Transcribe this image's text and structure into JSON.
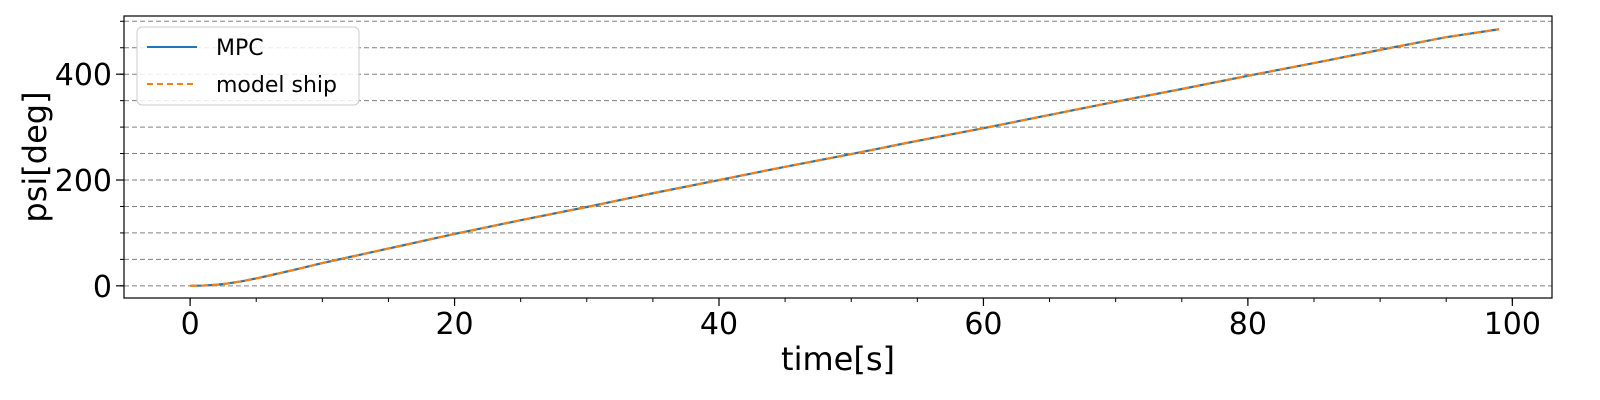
{
  "chart_data": {
    "type": "line",
    "xlabel": "time[s]",
    "ylabel": "psi[deg]",
    "xlim": [
      -5,
      103
    ],
    "ylim": [
      -23,
      510
    ],
    "xticks": [
      0,
      20,
      40,
      60,
      80,
      100
    ],
    "yticks": [
      0,
      200,
      400
    ],
    "x_minor_step": 5,
    "y_minor_step": 50,
    "grid": "horizontal dashed at minor and major y ticks",
    "legend_position": "top-left",
    "series": [
      {
        "name": "MPC",
        "color": "#1f77b4",
        "style": "solid",
        "x": [
          0,
          1,
          2,
          3,
          4,
          5,
          6,
          8,
          10,
          12,
          14,
          16,
          18,
          20,
          25,
          30,
          35,
          40,
          45,
          50,
          55,
          60,
          65,
          70,
          75,
          80,
          85,
          90,
          95,
          99
        ],
        "y": [
          0,
          0.5,
          2,
          5,
          9,
          14,
          19.5,
          31,
          43,
          54,
          65,
          76,
          87,
          98,
          124,
          149,
          175,
          200,
          225,
          249,
          274,
          298,
          323,
          348,
          372,
          397,
          421,
          446,
          470,
          485
        ]
      },
      {
        "name": "model ship",
        "color": "#ff7f0e",
        "style": "dashed",
        "x": [
          0,
          1,
          2,
          3,
          4,
          5,
          6,
          8,
          10,
          12,
          14,
          16,
          18,
          20,
          25,
          30,
          35,
          40,
          45,
          50,
          55,
          60,
          65,
          70,
          75,
          80,
          85,
          90,
          95,
          99
        ],
        "y": [
          0,
          0.5,
          2,
          5,
          9,
          14,
          19.5,
          31,
          43,
          54,
          65,
          76,
          87,
          98,
          124,
          149,
          175,
          200,
          225,
          249,
          274,
          298,
          323,
          348,
          372,
          397,
          421,
          446,
          470,
          485
        ]
      }
    ]
  }
}
